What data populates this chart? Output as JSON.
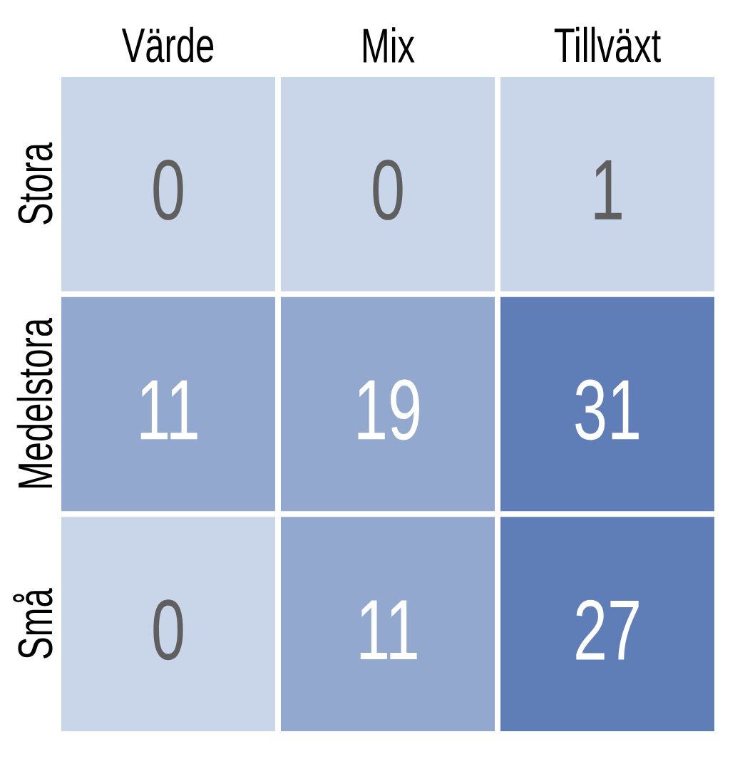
{
  "chart_data": {
    "type": "heatmap",
    "categories": [
      "Värde",
      "Mix",
      "Tillväxt"
    ],
    "y_categories": [
      "Stora",
      "Medelstora",
      "Små"
    ],
    "cells": [
      [
        0,
        0,
        1
      ],
      [
        11,
        19,
        31
      ],
      [
        0,
        11,
        27
      ]
    ],
    "colors": [
      [
        "#c9d5e8",
        "#c9d5e8",
        "#c9d5e8"
      ],
      [
        "#93a8cf",
        "#93a8cf",
        "#5f7db6"
      ],
      [
        "#c9d5e8",
        "#93a8cf",
        "#5f7db6"
      ]
    ],
    "data_labels": true
  }
}
